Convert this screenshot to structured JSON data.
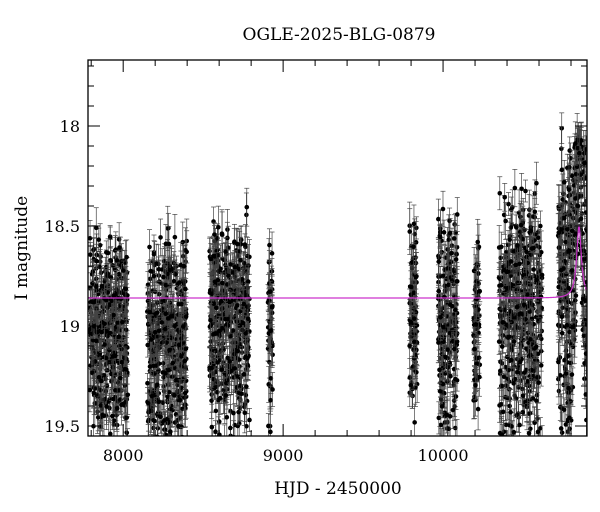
{
  "chart_data": {
    "type": "scatter",
    "title": "OGLE-2025-BLG-0879",
    "xlabel": "HJD - 2450000",
    "ylabel": "I magnitude",
    "xlim": [
      7780,
      10900
    ],
    "ylim": [
      19.55,
      17.67
    ],
    "y_inverted": true,
    "grid": false,
    "legend": "none",
    "x_ticks": [
      {
        "value": 8000,
        "label": "8000"
      },
      {
        "value": 9000,
        "label": "9000"
      },
      {
        "value": 10000,
        "label": "10000"
      }
    ],
    "y_ticks": [
      {
        "value": 18,
        "label": "18"
      },
      {
        "value": 18.5,
        "label": "18.5"
      },
      {
        "value": 19,
        "label": "19"
      },
      {
        "value": 19.5,
        "label": "19.5"
      }
    ],
    "series": [
      {
        "kind": "photometry",
        "style": "black points with error bars",
        "color": "#000000",
        "error_bar_color": "#444444",
        "seasons": [
          {
            "x": [
              7790,
              8030
            ],
            "mag_range": [
              18.55,
              19.55
            ],
            "typical_error": 0.08
          },
          {
            "x": [
              8150,
              8400
            ],
            "mag_range": [
              18.55,
              19.55
            ],
            "typical_error": 0.08
          },
          {
            "x": [
              8540,
              8790
            ],
            "mag_range": [
              18.45,
              19.55
            ],
            "typical_error": 0.08
          },
          {
            "x": [
              8905,
              8935
            ],
            "mag_range": [
              18.5,
              19.55
            ],
            "typical_error": 0.08
          },
          {
            "x": [
              9790,
              9840
            ],
            "mag_range": [
              18.45,
              19.5
            ],
            "typical_error": 0.08
          },
          {
            "x": [
              9970,
              10090
            ],
            "mag_range": [
              18.45,
              19.55
            ],
            "typical_error": 0.08
          },
          {
            "x": [
              10190,
              10230
            ],
            "mag_range": [
              18.5,
              19.4
            ],
            "typical_error": 0.08
          },
          {
            "x": [
              10350,
              10620
            ],
            "mag_range": [
              18.35,
              19.55
            ],
            "typical_error": 0.08
          },
          {
            "x": [
              10720,
              10900
            ],
            "mag_range": [
              18.1,
              19.55
            ],
            "typical_error": 0.09
          }
        ],
        "peak": {
          "x": 10850,
          "mag": 18.05
        }
      },
      {
        "kind": "model",
        "style": "line",
        "color": "#cc33cc",
        "baseline_mag": 18.86,
        "t0": 10850,
        "peak_mag": 18.5,
        "width_days": 20
      }
    ]
  }
}
